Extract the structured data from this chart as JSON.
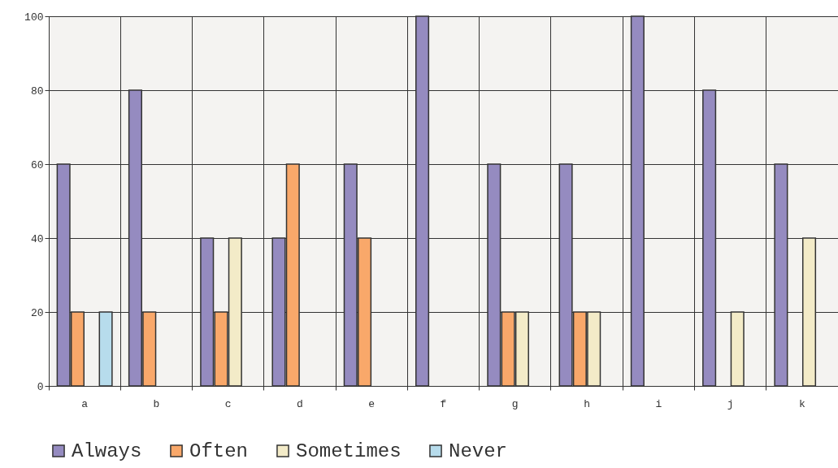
{
  "chart_data": {
    "type": "bar",
    "categories": [
      "a",
      "b",
      "c",
      "d",
      "e",
      "f",
      "g",
      "h",
      "i",
      "j",
      "k"
    ],
    "series": [
      {
        "name": "Always",
        "color": "#958bc0",
        "values": [
          60,
          80,
          40,
          40,
          60,
          100,
          60,
          60,
          100,
          80,
          60
        ]
      },
      {
        "name": "Often",
        "color": "#f9a86a",
        "values": [
          20,
          20,
          20,
          60,
          40,
          null,
          20,
          20,
          null,
          null,
          null
        ]
      },
      {
        "name": "Sometimes",
        "color": "#f3ebc8",
        "values": [
          null,
          null,
          40,
          null,
          null,
          null,
          20,
          20,
          null,
          20,
          40
        ]
      },
      {
        "name": "Never",
        "color": "#b7dcec",
        "values": [
          20,
          null,
          null,
          null,
          null,
          null,
          null,
          null,
          null,
          null,
          null
        ]
      }
    ],
    "ylim": [
      0,
      100
    ],
    "yticks": [
      0,
      20,
      40,
      60,
      80,
      100
    ],
    "grid": true,
    "legend": "bottom"
  }
}
